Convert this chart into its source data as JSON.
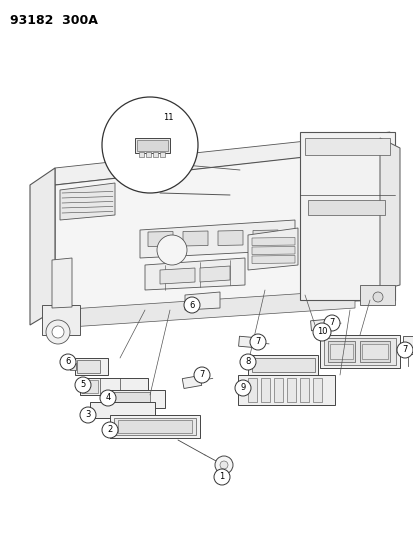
{
  "title": "93182  300A",
  "bg_color": "#ffffff",
  "line_color": "#555555",
  "thin": 0.5,
  "med": 0.8,
  "thick": 1.0
}
